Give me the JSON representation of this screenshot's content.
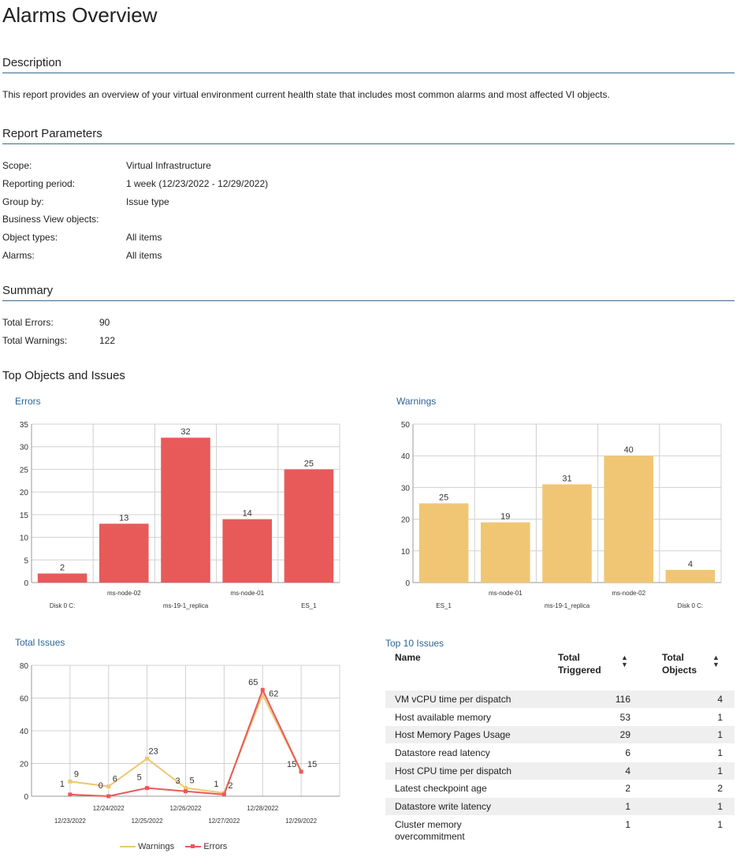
{
  "title": "Alarms Overview",
  "description": {
    "heading": "Description",
    "text": "This report provides an overview of your virtual environment current health state that includes most common alarms and most affected VI objects."
  },
  "parameters": {
    "heading": "Report Parameters",
    "rows": [
      {
        "label": "Scope:",
        "value": "Virtual Infrastructure"
      },
      {
        "label": "Reporting period:",
        "value": "1 week (12/23/2022 - 12/29/2022)"
      },
      {
        "label": "Group by:",
        "value": "Issue type"
      },
      {
        "label": "Business View objects:",
        "value": ""
      },
      {
        "label": "Object types:",
        "value": "All items"
      },
      {
        "label": "Alarms:",
        "value": "All items"
      }
    ]
  },
  "summary": {
    "heading": "Summary",
    "rows": [
      {
        "label": "Total Errors:",
        "value": "90"
      },
      {
        "label": "Total Warnings:",
        "value": "122"
      }
    ]
  },
  "top_heading": "Top Objects and Issues",
  "colors": {
    "errors": "#e85a5a",
    "warnings": "#f0c674",
    "heading_rule": "#3d6a8a",
    "chart_title": "#2a6496"
  },
  "chart_data": [
    {
      "id": "errors",
      "type": "bar",
      "title": "Errors",
      "categories": [
        "Disk 0  C:",
        "ms-node-02",
        "ms-19-1_replica",
        "ms-node-01",
        "ES_1"
      ],
      "values": [
        2,
        13,
        32,
        14,
        25
      ],
      "ylim": [
        0,
        35
      ],
      "yticks": [
        0,
        5,
        10,
        15,
        20,
        25,
        30,
        35
      ],
      "grid": true
    },
    {
      "id": "warnings",
      "type": "bar",
      "title": "Warnings",
      "categories": [
        "ES_1",
        "ms-node-01",
        "ms-19-1_replica",
        "ms-node-02",
        "Disk 0  C:"
      ],
      "values": [
        25,
        19,
        31,
        40,
        4
      ],
      "ylim": [
        0,
        50
      ],
      "yticks": [
        0,
        10,
        20,
        30,
        40,
        50
      ],
      "grid": true
    },
    {
      "id": "total_issues",
      "type": "line",
      "title": "Total Issues",
      "x": [
        "12/23/2022",
        "12/24/2022",
        "12/25/2022",
        "12/26/2022",
        "12/27/2022",
        "12/28/2022",
        "12/29/2022"
      ],
      "series": [
        {
          "name": "Warnings",
          "values": [
            9,
            6,
            23,
            5,
            2,
            62,
            15
          ]
        },
        {
          "name": "Errors",
          "values": [
            1,
            0,
            5,
            3,
            1,
            65,
            15
          ]
        }
      ],
      "ylim": [
        0,
        80
      ],
      "yticks": [
        0,
        20,
        40,
        60,
        80
      ],
      "grid": true,
      "legend": "bottom"
    }
  ],
  "top10": {
    "title": "Top 10 Issues",
    "headers": {
      "name": "Name",
      "triggered": "Total Triggered",
      "objects": "Total Objects"
    },
    "rows": [
      {
        "name": "VM vCPU time per dispatch",
        "triggered": "116",
        "objects": "4"
      },
      {
        "name": "Host available memory",
        "triggered": "53",
        "objects": "1"
      },
      {
        "name": "Host Memory Pages Usage",
        "triggered": "29",
        "objects": "1"
      },
      {
        "name": "Datastore read latency",
        "triggered": "6",
        "objects": "1"
      },
      {
        "name": "Host CPU time per dispatch",
        "triggered": "4",
        "objects": "1"
      },
      {
        "name": "Latest checkpoint age",
        "triggered": "2",
        "objects": "2"
      },
      {
        "name": "Datastore write latency",
        "triggered": "1",
        "objects": "1"
      },
      {
        "name": "Cluster memory overcommitment",
        "triggered": "1",
        "objects": "1"
      }
    ]
  }
}
